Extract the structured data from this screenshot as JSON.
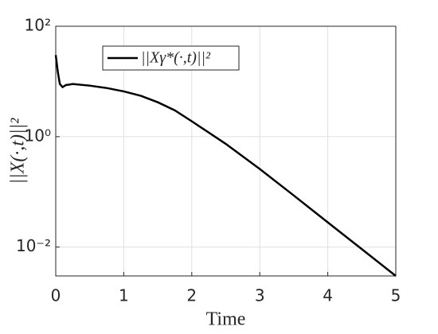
{
  "chart_data": {
    "type": "line",
    "xlabel": "Time",
    "ylabel": "||X(·,t)||²",
    "x": [
      0,
      0.03,
      0.06,
      0.1,
      0.15,
      0.25,
      0.5,
      0.75,
      1,
      1.25,
      1.5,
      1.75,
      2,
      2.5,
      3,
      3.5,
      4,
      4.5,
      5
    ],
    "series": [
      {
        "name": "||Xγ*(·,t)||²",
        "color": "#000000",
        "values": [
          30,
          15,
          9,
          7.9,
          8.6,
          9.0,
          8.4,
          7.6,
          6.6,
          5.5,
          4.2,
          3.0,
          1.9,
          0.74,
          0.26,
          0.086,
          0.028,
          0.0092,
          0.003
        ]
      }
    ],
    "xlim": [
      0,
      5
    ],
    "xticks": [
      0,
      1,
      2,
      3,
      4,
      5
    ],
    "ylim": [
      0.003,
      100
    ],
    "yticks": [
      {
        "value": 0.01,
        "label": "10⁻²"
      },
      {
        "value": 1,
        "label": "10⁰"
      },
      {
        "value": 100,
        "label": "10²"
      }
    ],
    "ylog": true,
    "grid": true,
    "legend": "upper left"
  }
}
